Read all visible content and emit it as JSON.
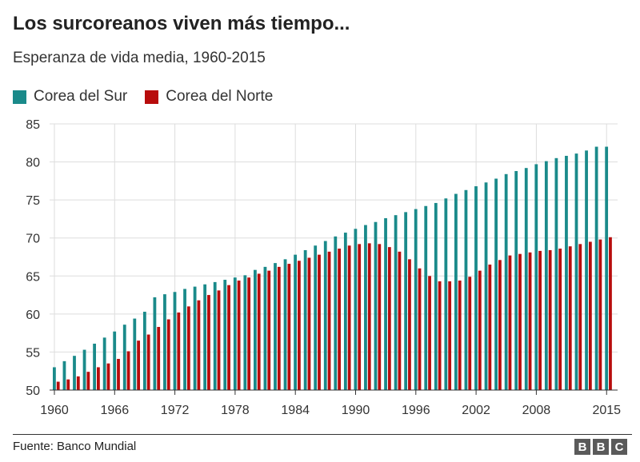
{
  "title": "Los surcoreanos viven más tiempo...",
  "subtitle": "Esperanza de vida media, 1960-2015",
  "legend": [
    {
      "label": "Corea del Sur",
      "color": "#1a8a8a"
    },
    {
      "label": "Corea del Norte",
      "color": "#b80c0c"
    }
  ],
  "source": "Fuente: Banco Mundial",
  "logo": [
    "B",
    "B",
    "C"
  ],
  "chart_data": {
    "type": "bar",
    "title": "Los surcoreanos viven más tiempo...",
    "subtitle": "Esperanza de vida media, 1960-2015",
    "xlabel": "",
    "ylabel": "",
    "ylim": [
      50,
      85
    ],
    "y_ticks": [
      50,
      55,
      60,
      65,
      70,
      75,
      80,
      85
    ],
    "x_ticks": [
      "1960",
      "1966",
      "1972",
      "1978",
      "1984",
      "1990",
      "1996",
      "2002",
      "2008",
      "2015"
    ],
    "grid": true,
    "legend_position": "top-left",
    "categories": [
      1960,
      1961,
      1962,
      1963,
      1964,
      1965,
      1966,
      1967,
      1968,
      1969,
      1970,
      1971,
      1972,
      1973,
      1974,
      1975,
      1976,
      1977,
      1978,
      1979,
      1980,
      1981,
      1982,
      1983,
      1984,
      1985,
      1986,
      1987,
      1988,
      1989,
      1990,
      1991,
      1992,
      1993,
      1994,
      1995,
      1996,
      1997,
      1998,
      1999,
      2000,
      2001,
      2002,
      2003,
      2004,
      2005,
      2006,
      2007,
      2008,
      2009,
      2010,
      2011,
      2012,
      2013,
      2014,
      2015
    ],
    "series": [
      {
        "name": "Corea del Sur",
        "color": "#1a8a8a",
        "values": [
          53.0,
          53.8,
          54.5,
          55.3,
          56.1,
          56.9,
          57.7,
          58.6,
          59.4,
          60.3,
          62.2,
          62.6,
          62.9,
          63.3,
          63.6,
          63.9,
          64.2,
          64.5,
          64.8,
          65.1,
          65.8,
          66.2,
          66.7,
          67.2,
          67.8,
          68.4,
          69.0,
          69.6,
          70.2,
          70.7,
          71.2,
          71.7,
          72.1,
          72.6,
          73.0,
          73.4,
          73.8,
          74.2,
          74.6,
          75.2,
          75.8,
          76.3,
          76.8,
          77.3,
          77.8,
          78.4,
          78.8,
          79.2,
          79.7,
          80.1,
          80.5,
          80.8,
          81.1,
          81.5,
          82.0,
          82.0
        ]
      },
      {
        "name": "Corea del Norte",
        "color": "#b80c0c",
        "values": [
          51.1,
          51.4,
          51.8,
          52.4,
          53.0,
          53.5,
          54.1,
          55.1,
          56.5,
          57.3,
          58.3,
          59.3,
          60.2,
          61.0,
          61.8,
          62.5,
          63.1,
          63.8,
          64.4,
          64.8,
          65.3,
          65.7,
          66.2,
          66.6,
          67.0,
          67.4,
          67.8,
          68.2,
          68.6,
          69.0,
          69.2,
          69.3,
          69.2,
          68.8,
          68.2,
          67.2,
          66.0,
          65.0,
          64.3,
          64.3,
          64.4,
          64.9,
          65.7,
          66.5,
          67.1,
          67.7,
          67.9,
          68.1,
          68.3,
          68.4,
          68.6,
          68.9,
          69.2,
          69.5,
          69.8,
          70.1
        ]
      }
    ]
  }
}
